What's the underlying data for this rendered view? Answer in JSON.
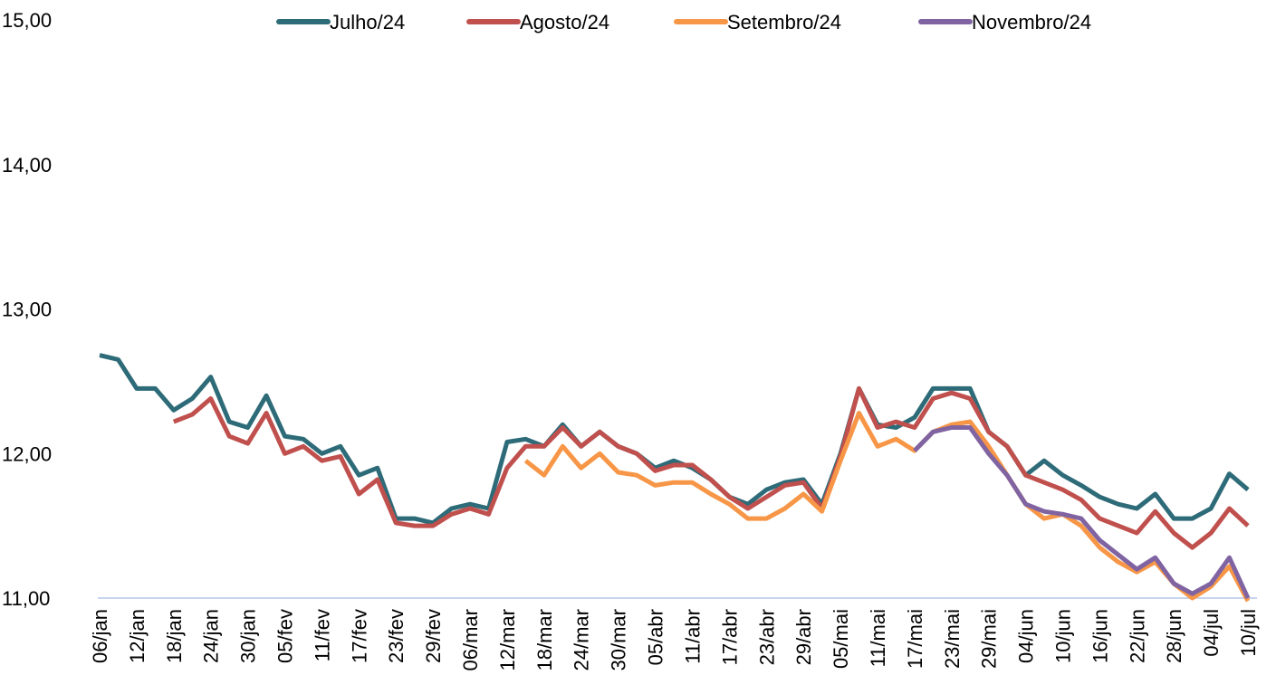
{
  "chart_data": {
    "type": "line",
    "categories": [
      "06/jan",
      null,
      "12/jan",
      null,
      "18/jan",
      null,
      "24/jan",
      null,
      "30/jan",
      null,
      "05/fev",
      null,
      "11/fev",
      null,
      "17/fev",
      null,
      "23/fev",
      null,
      "29/fev",
      null,
      "06/mar",
      null,
      "12/mar",
      null,
      "18/mar",
      null,
      "24/mar",
      null,
      "30/mar",
      null,
      "05/abr",
      null,
      "11/abr",
      null,
      "17/abr",
      null,
      "23/abr",
      null,
      "29/abr",
      null,
      "05/mai",
      null,
      "11/mai",
      null,
      "17/mai",
      null,
      "23/mai",
      null,
      "29/mai",
      null,
      "04/jun",
      null,
      "10/jun",
      null,
      "16/jun",
      null,
      "22/jun",
      null,
      "28/jun",
      null,
      "04/jul",
      null,
      "10/jul"
    ],
    "series": [
      {
        "name": "Julho/24",
        "color": "#2e6b78",
        "values": [
          12.68,
          12.65,
          12.45,
          12.45,
          12.3,
          12.38,
          12.53,
          12.22,
          12.18,
          12.4,
          12.12,
          12.1,
          12.0,
          12.05,
          11.85,
          11.9,
          11.55,
          11.55,
          11.52,
          11.62,
          11.65,
          11.62,
          12.08,
          12.1,
          12.05,
          12.2,
          12.05,
          12.15,
          12.05,
          12.0,
          11.9,
          11.95,
          11.9,
          11.82,
          11.7,
          11.65,
          11.75,
          11.8,
          11.82,
          11.65,
          12.0,
          12.45,
          12.2,
          12.18,
          12.25,
          12.45,
          12.45,
          12.45,
          12.15,
          12.05,
          11.85,
          11.95,
          11.85,
          11.78,
          11.7,
          11.65,
          11.62,
          11.72,
          11.55,
          11.55,
          11.62,
          11.86,
          11.75
        ]
      },
      {
        "name": "Agosto/24",
        "color": "#c0504d",
        "values": [
          null,
          null,
          null,
          null,
          12.22,
          12.27,
          12.38,
          12.12,
          12.07,
          12.28,
          12.0,
          12.05,
          11.95,
          11.98,
          11.72,
          11.82,
          11.52,
          11.5,
          11.5,
          11.58,
          11.62,
          11.58,
          11.9,
          12.05,
          12.05,
          12.18,
          12.05,
          12.15,
          12.05,
          12.0,
          11.88,
          11.92,
          11.92,
          11.82,
          11.7,
          11.62,
          11.7,
          11.78,
          11.8,
          11.62,
          11.98,
          12.45,
          12.18,
          12.22,
          12.18,
          12.38,
          12.42,
          12.38,
          12.15,
          12.05,
          11.85,
          11.8,
          11.75,
          11.68,
          11.55,
          11.5,
          11.45,
          11.6,
          11.45,
          11.35,
          11.45,
          11.62,
          11.5
        ]
      },
      {
        "name": "Setembro/24",
        "color": "#f79646",
        "values": [
          null,
          null,
          null,
          null,
          null,
          null,
          null,
          null,
          null,
          null,
          null,
          null,
          null,
          null,
          null,
          null,
          null,
          null,
          null,
          null,
          null,
          null,
          null,
          11.95,
          11.85,
          12.05,
          11.9,
          12.0,
          11.87,
          11.85,
          11.78,
          11.8,
          11.8,
          11.72,
          11.65,
          11.55,
          11.55,
          11.62,
          11.72,
          11.6,
          11.95,
          12.28,
          12.05,
          12.1,
          12.02,
          12.15,
          12.2,
          12.22,
          12.05,
          11.85,
          11.65,
          11.55,
          11.58,
          11.5,
          11.35,
          11.25,
          11.18,
          11.25,
          11.1,
          11.0,
          11.08,
          11.22,
          10.98
        ]
      },
      {
        "name": "Novembro/24",
        "color": "#8064a2",
        "values": [
          null,
          null,
          null,
          null,
          null,
          null,
          null,
          null,
          null,
          null,
          null,
          null,
          null,
          null,
          null,
          null,
          null,
          null,
          null,
          null,
          null,
          null,
          null,
          null,
          null,
          null,
          null,
          null,
          null,
          null,
          null,
          null,
          null,
          null,
          null,
          null,
          null,
          null,
          null,
          null,
          null,
          null,
          null,
          null,
          12.02,
          12.15,
          12.18,
          12.18,
          12.0,
          11.85,
          11.65,
          11.6,
          11.58,
          11.55,
          11.4,
          11.3,
          11.2,
          11.28,
          11.1,
          11.03,
          11.1,
          11.28,
          11.0
        ]
      }
    ],
    "ylim": [
      11,
      15
    ],
    "yticks": [
      {
        "value": 11,
        "label": "11,00"
      },
      {
        "value": 12,
        "label": "12,00"
      },
      {
        "value": 13,
        "label": "13,00"
      },
      {
        "value": 14,
        "label": "14,00"
      },
      {
        "value": 15,
        "label": "15,00"
      }
    ],
    "grid": false,
    "legend": "top"
  }
}
